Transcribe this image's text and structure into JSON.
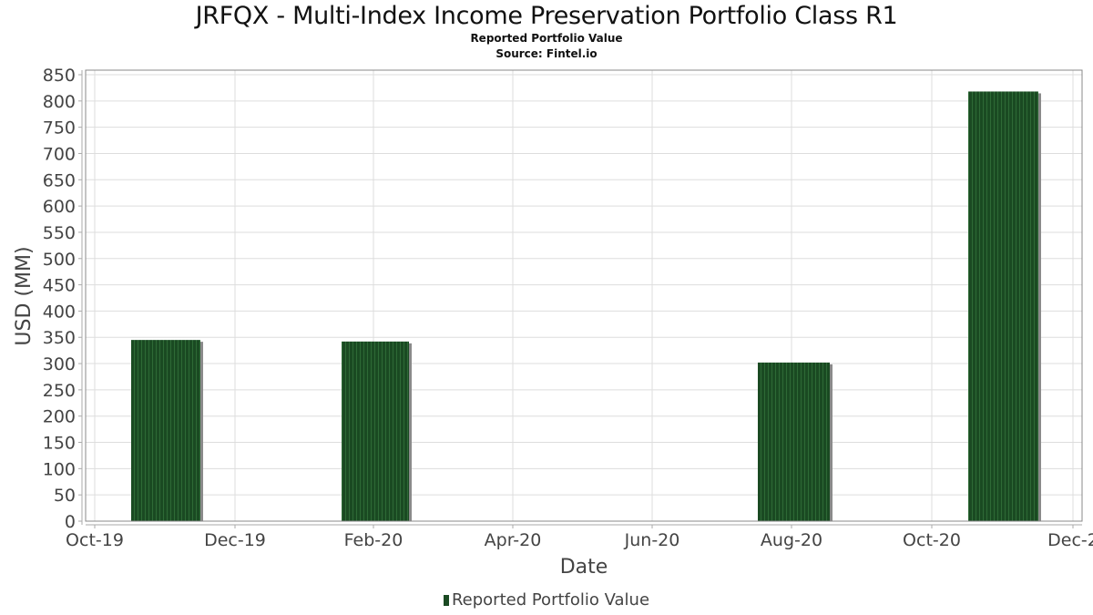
{
  "header": {
    "title": "JRFQX - Multi-Index Income Preservation Portfolio Class R1",
    "subtitle": "Reported Portfolio Value",
    "source": "Source: Fintel.io"
  },
  "legend": {
    "label": "Reported Portfolio Value",
    "color": "#1a4a22"
  },
  "colors": {
    "bar": "#1a4a22",
    "bar_stripe": "#2e6a36",
    "bar_shadow": "#8a8a8a",
    "grid": "#dddddd",
    "frame": "#888888"
  },
  "chart_data": {
    "type": "bar",
    "title": "JRFQX - Multi-Index Income Preservation Portfolio Class R1",
    "subtitle": "Reported Portfolio Value",
    "source": "Source: Fintel.io",
    "xlabel": "Date",
    "ylabel": "USD (MM)",
    "ylim": [
      0,
      850
    ],
    "yticks": [
      0,
      50,
      100,
      150,
      200,
      250,
      300,
      350,
      400,
      450,
      500,
      550,
      600,
      650,
      700,
      750,
      800,
      850
    ],
    "xticks": [
      "Oct-19",
      "Dec-19",
      "Feb-20",
      "Apr-20",
      "Jun-20",
      "Aug-20",
      "Oct-20",
      "Dec-2"
    ],
    "grid": true,
    "legend_position": "bottom",
    "categories": [
      "Nov-19",
      "Feb-20",
      "Aug-20",
      "Nov-20"
    ],
    "series": [
      {
        "name": "Reported Portfolio Value",
        "values": [
          345,
          342,
          302,
          818
        ]
      }
    ]
  }
}
